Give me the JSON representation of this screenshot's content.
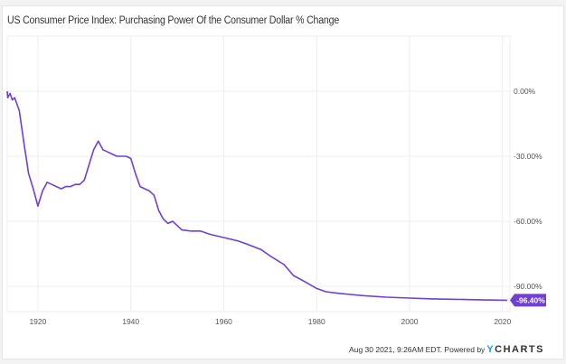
{
  "chart_data": {
    "type": "line",
    "title": "US Consumer Price Index: Purchasing Power Of the Consumer Dollar % Change",
    "xlabel": "",
    "ylabel": "",
    "xlim": [
      1913.4,
      2021.6
    ],
    "ylim": [
      -100,
      10
    ],
    "x_ticks": [
      1920,
      1940,
      1960,
      1980,
      2000,
      2020
    ],
    "y_ticks": [
      {
        "value": 0,
        "label": "0.00%"
      },
      {
        "value": -30,
        "label": "-30.00%"
      },
      {
        "value": -60,
        "label": "-60.00%"
      },
      {
        "value": -90,
        "label": "-90.00%"
      }
    ],
    "grid": true,
    "series": [
      {
        "name": "Purchasing Power % Change",
        "color": "#6f3fd6",
        "x": [
          1913,
          1913.5,
          1914,
          1914.5,
          1915,
          1916,
          1917,
          1918,
          1919,
          1920,
          1921,
          1922,
          1923,
          1924,
          1925,
          1926,
          1927,
          1928,
          1929,
          1930,
          1931,
          1932,
          1933,
          1934,
          1935,
          1936,
          1937,
          1938,
          1939,
          1940,
          1941,
          1942,
          1943,
          1944,
          1945,
          1946,
          1947,
          1948,
          1949,
          1950,
          1951,
          1953,
          1955,
          1957,
          1960,
          1963,
          1965,
          1968,
          1970,
          1973,
          1975,
          1978,
          1980,
          1982,
          1985,
          1990,
          1995,
          2000,
          2005,
          2010,
          2015,
          2021
        ],
        "values": [
          0,
          -3,
          -1,
          -4,
          -3,
          -9,
          -24,
          -38,
          -45,
          -53,
          -46,
          -42,
          -43,
          -44,
          -45,
          -44,
          -44,
          -43,
          -43,
          -41,
          -34,
          -27,
          -23,
          -27,
          -28,
          -29,
          -30,
          -30,
          -30,
          -31,
          -38,
          -44,
          -45,
          -46,
          -48,
          -55,
          -59,
          -61,
          -60,
          -62,
          -64,
          -64.5,
          -64.5,
          -66,
          -67.5,
          -69,
          -70.5,
          -73,
          -76,
          -80,
          -85,
          -88.5,
          -91,
          -92.5,
          -93.3,
          -94.3,
          -95,
          -95.4,
          -95.8,
          -96,
          -96.2,
          -96.4
        ]
      }
    ],
    "end_label": "-96.40%",
    "legend": "none"
  },
  "footer": {
    "timestamp": "Aug 30 2021, 9:26AM EDT. Powered by",
    "logo_y": "Y",
    "logo_rest": "CHARTS"
  }
}
